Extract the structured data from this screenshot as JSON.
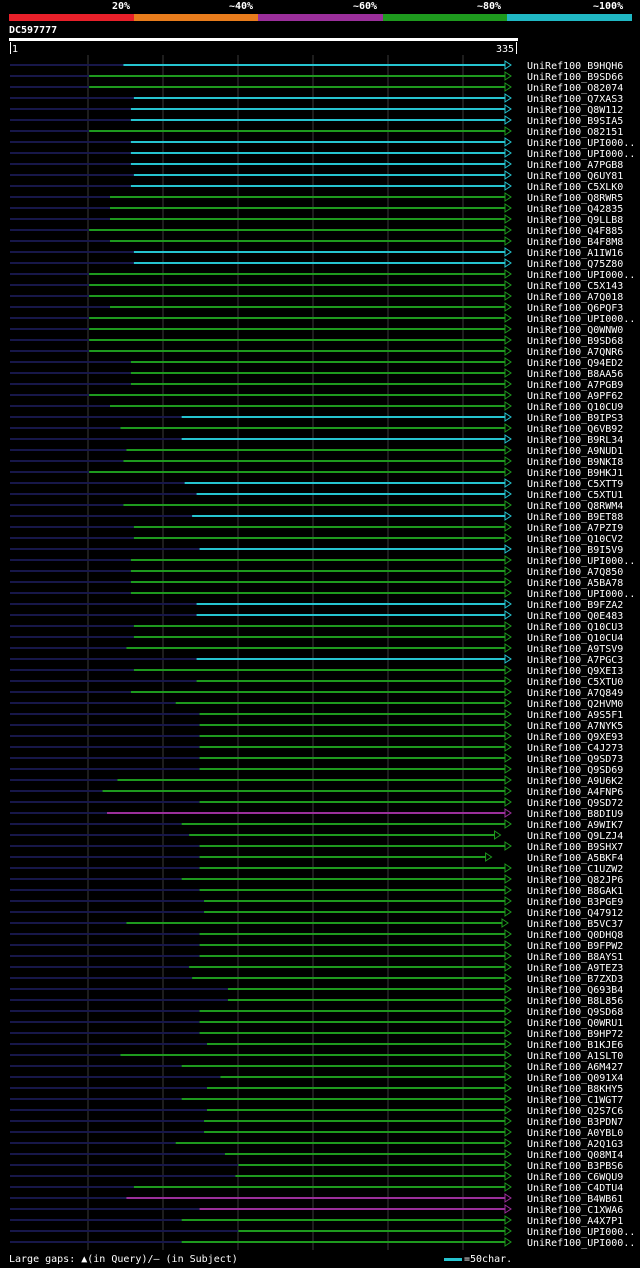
{
  "legend": {
    "labels": [
      "20%",
      "~40%",
      "~60%",
      "~80%",
      "~100%"
    ],
    "colors": [
      "#e8202a",
      "#e87c1c",
      "#9b2f9b",
      "#1e9a1e",
      "#20b8c4"
    ]
  },
  "query": {
    "id": "DC597777",
    "start": "1",
    "end": "335"
  },
  "footer": {
    "left_text": "Large gaps: ▲(in Query)/– (in Subject)",
    "right_text": "=50char."
  },
  "colors": {
    "cyan": "#26c4d0",
    "green": "#1e9a1e",
    "purple": "#9b2f9b",
    "dark": "#17174a",
    "grid": "#3a3a3a"
  },
  "hits": [
    {
      "label": "UniRef100_B9HQH6",
      "start": 76,
      "end": 335,
      "color": "cyan"
    },
    {
      "label": "UniRef100_B9SD66",
      "start": 53,
      "end": 335,
      "color": "green"
    },
    {
      "label": "UniRef100_O82074",
      "start": 53,
      "end": 335,
      "color": "green"
    },
    {
      "label": "UniRef100_Q7XAS3",
      "start": 83,
      "end": 335,
      "color": "cyan"
    },
    {
      "label": "UniRef100_Q8W112",
      "start": 81,
      "end": 335,
      "color": "cyan"
    },
    {
      "label": "UniRef100_B9SIA5",
      "start": 81,
      "end": 335,
      "color": "cyan"
    },
    {
      "label": "UniRef100_O82151",
      "start": 53,
      "end": 335,
      "color": "green"
    },
    {
      "label": "UniRef100_UPI000..",
      "start": 81,
      "end": 335,
      "color": "cyan"
    },
    {
      "label": "UniRef100_UPI000..",
      "start": 81,
      "end": 335,
      "color": "cyan"
    },
    {
      "label": "UniRef100_A7PGB8",
      "start": 81,
      "end": 335,
      "color": "cyan"
    },
    {
      "label": "UniRef100_Q6UY81",
      "start": 83,
      "end": 335,
      "color": "cyan"
    },
    {
      "label": "UniRef100_C5XLK0",
      "start": 81,
      "end": 335,
      "color": "cyan"
    },
    {
      "label": "UniRef100_Q8RWR5",
      "start": 67,
      "end": 335,
      "color": "green"
    },
    {
      "label": "UniRef100_Q42835",
      "start": 67,
      "end": 335,
      "color": "green"
    },
    {
      "label": "UniRef100_Q9LLB8",
      "start": 67,
      "end": 335,
      "color": "green"
    },
    {
      "label": "UniRef100_Q4F885",
      "start": 53,
      "end": 335,
      "color": "green"
    },
    {
      "label": "UniRef100_B4F8M8",
      "start": 67,
      "end": 335,
      "color": "green"
    },
    {
      "label": "UniRef100_A1IW16",
      "start": 83,
      "end": 335,
      "color": "cyan"
    },
    {
      "label": "UniRef100_Q75Z80",
      "start": 83,
      "end": 335,
      "color": "cyan"
    },
    {
      "label": "UniRef100_UPI000..",
      "start": 53,
      "end": 335,
      "color": "green"
    },
    {
      "label": "UniRef100_C5X143",
      "start": 53,
      "end": 335,
      "color": "green"
    },
    {
      "label": "UniRef100_A7Q018",
      "start": 53,
      "end": 335,
      "color": "green"
    },
    {
      "label": "UniRef100_Q6PQF3",
      "start": 67,
      "end": 335,
      "color": "green"
    },
    {
      "label": "UniRef100_UPI000..",
      "start": 53,
      "end": 335,
      "color": "green"
    },
    {
      "label": "UniRef100_Q0WNW0",
      "start": 53,
      "end": 335,
      "color": "green"
    },
    {
      "label": "UniRef100_B9SD68",
      "start": 53,
      "end": 335,
      "color": "green"
    },
    {
      "label": "UniRef100_A7QNR6",
      "start": 53,
      "end": 335,
      "color": "green"
    },
    {
      "label": "UniRef100_Q94ED2",
      "start": 81,
      "end": 335,
      "color": "green"
    },
    {
      "label": "UniRef100_B8AA56",
      "start": 81,
      "end": 335,
      "color": "green"
    },
    {
      "label": "UniRef100_A7PGB9",
      "start": 81,
      "end": 335,
      "color": "green"
    },
    {
      "label": "UniRef100_A9PF62",
      "start": 53,
      "end": 335,
      "color": "green"
    },
    {
      "label": "UniRef100_Q10CU9",
      "start": 67,
      "end": 335,
      "color": "green"
    },
    {
      "label": "UniRef100_B9IPS3",
      "start": 115,
      "end": 335,
      "color": "cyan"
    },
    {
      "label": "UniRef100_Q6VB92",
      "start": 74,
      "end": 335,
      "color": "green"
    },
    {
      "label": "UniRef100_B9RL34",
      "start": 115,
      "end": 335,
      "color": "cyan"
    },
    {
      "label": "UniRef100_A9NUD1",
      "start": 78,
      "end": 335,
      "color": "green"
    },
    {
      "label": "UniRef100_B9NKI8",
      "start": 76,
      "end": 335,
      "color": "green"
    },
    {
      "label": "UniRef100_B9HKJ1",
      "start": 53,
      "end": 335,
      "color": "green"
    },
    {
      "label": "UniRef100_C5XTT9",
      "start": 117,
      "end": 335,
      "color": "cyan"
    },
    {
      "label": "UniRef100_C5XTU1",
      "start": 125,
      "end": 335,
      "color": "cyan"
    },
    {
      "label": "UniRef100_Q8RWM4",
      "start": 76,
      "end": 335,
      "color": "green"
    },
    {
      "label": "UniRef100_B9ET88",
      "start": 122,
      "end": 335,
      "color": "cyan"
    },
    {
      "label": "UniRef100_A7PZI9",
      "start": 83,
      "end": 335,
      "color": "green"
    },
    {
      "label": "UniRef100_Q10CV2",
      "start": 83,
      "end": 335,
      "color": "green"
    },
    {
      "label": "UniRef100_B9I5V9",
      "start": 127,
      "end": 335,
      "color": "cyan"
    },
    {
      "label": "UniRef100_UPI000..",
      "start": 81,
      "end": 335,
      "color": "green"
    },
    {
      "label": "UniRef100_A7Q850",
      "start": 81,
      "end": 335,
      "color": "green"
    },
    {
      "label": "UniRef100_A5BA78",
      "start": 81,
      "end": 335,
      "color": "green"
    },
    {
      "label": "UniRef100_UPI000..",
      "start": 81,
      "end": 335,
      "color": "green"
    },
    {
      "label": "UniRef100_B9FZA2",
      "start": 125,
      "end": 335,
      "color": "cyan"
    },
    {
      "label": "UniRef100_Q0E483",
      "start": 125,
      "end": 335,
      "color": "cyan"
    },
    {
      "label": "UniRef100_Q10CU3",
      "start": 83,
      "end": 335,
      "color": "green"
    },
    {
      "label": "UniRef100_Q10CU4",
      "start": 83,
      "end": 335,
      "color": "green"
    },
    {
      "label": "UniRef100_A9TSV9",
      "start": 78,
      "end": 335,
      "color": "green"
    },
    {
      "label": "UniRef100_A7PGC3",
      "start": 125,
      "end": 335,
      "color": "cyan"
    },
    {
      "label": "UniRef100_Q9XEI3",
      "start": 83,
      "end": 335,
      "color": "green"
    },
    {
      "label": "UniRef100_C5XTU0",
      "start": 125,
      "end": 335,
      "color": "green"
    },
    {
      "label": "UniRef100_A7Q849",
      "start": 81,
      "end": 335,
      "color": "green"
    },
    {
      "label": "UniRef100_Q2HVM0",
      "start": 111,
      "end": 335,
      "color": "green"
    },
    {
      "label": "UniRef100_A9S5F1",
      "start": 127,
      "end": 335,
      "color": "green"
    },
    {
      "label": "UniRef100_A7NYK5",
      "start": 127,
      "end": 335,
      "color": "green"
    },
    {
      "label": "UniRef100_Q9XE93",
      "start": 127,
      "end": 335,
      "color": "green"
    },
    {
      "label": "UniRef100_C4J273",
      "start": 127,
      "end": 335,
      "color": "green"
    },
    {
      "label": "UniRef100_Q9SD73",
      "start": 127,
      "end": 335,
      "color": "green"
    },
    {
      "label": "UniRef100_Q9SD69",
      "start": 127,
      "end": 335,
      "color": "green"
    },
    {
      "label": "UniRef100_A9U6K2",
      "start": 72,
      "end": 335,
      "color": "green"
    },
    {
      "label": "UniRef100_A4FNP6",
      "start": 62,
      "end": 335,
      "color": "green"
    },
    {
      "label": "UniRef100_Q9SD72",
      "start": 127,
      "end": 335,
      "color": "green"
    },
    {
      "label": "UniRef100_B8DIU9",
      "start": 65,
      "end": 335,
      "color": "purple"
    },
    {
      "label": "UniRef100_A9WIK7",
      "start": 115,
      "end": 335,
      "color": "green"
    },
    {
      "label": "UniRef100_Q9LZJ4",
      "start": 120,
      "end": 328,
      "color": "green"
    },
    {
      "label": "UniRef100_B9SHX7",
      "start": 127,
      "end": 335,
      "color": "green"
    },
    {
      "label": "UniRef100_A5BKF4",
      "start": 127,
      "end": 322,
      "color": "green"
    },
    {
      "label": "UniRef100_C1UZW2",
      "start": 127,
      "end": 335,
      "color": "green"
    },
    {
      "label": "UniRef100_Q82JP6",
      "start": 115,
      "end": 335,
      "color": "green"
    },
    {
      "label": "UniRef100_B8GAK1",
      "start": 127,
      "end": 335,
      "color": "green"
    },
    {
      "label": "UniRef100_B3PGE9",
      "start": 130,
      "end": 335,
      "color": "green"
    },
    {
      "label": "UniRef100_Q47912",
      "start": 130,
      "end": 335,
      "color": "green"
    },
    {
      "label": "UniRef100_B5VC37",
      "start": 78,
      "end": 333,
      "color": "green"
    },
    {
      "label": "UniRef100_Q0DHQ8",
      "start": 127,
      "end": 335,
      "color": "green"
    },
    {
      "label": "UniRef100_B9FPW2",
      "start": 127,
      "end": 335,
      "color": "green"
    },
    {
      "label": "UniRef100_B8AYS1",
      "start": 127,
      "end": 335,
      "color": "green"
    },
    {
      "label": "UniRef100_A9TEZ3",
      "start": 120,
      "end": 335,
      "color": "green"
    },
    {
      "label": "UniRef100_B7ZXD3",
      "start": 122,
      "end": 335,
      "color": "green"
    },
    {
      "label": "UniRef100_Q693B4",
      "start": 146,
      "end": 335,
      "color": "green"
    },
    {
      "label": "UniRef100_B8L856",
      "start": 146,
      "end": 335,
      "color": "green"
    },
    {
      "label": "UniRef100_Q9SD68",
      "start": 127,
      "end": 335,
      "color": "green"
    },
    {
      "label": "UniRef100_Q0WRU1",
      "start": 127,
      "end": 335,
      "color": "green"
    },
    {
      "label": "UniRef100_B9HP72",
      "start": 127,
      "end": 335,
      "color": "green"
    },
    {
      "label": "UniRef100_B1KJE6",
      "start": 132,
      "end": 335,
      "color": "green"
    },
    {
      "label": "UniRef100_A1SLT0",
      "start": 74,
      "end": 335,
      "color": "green"
    },
    {
      "label": "UniRef100_A6M427",
      "start": 115,
      "end": 335,
      "color": "green"
    },
    {
      "label": "UniRef100_Q091X4",
      "start": 141,
      "end": 335,
      "color": "green"
    },
    {
      "label": "UniRef100_B8KHY5",
      "start": 132,
      "end": 335,
      "color": "green"
    },
    {
      "label": "UniRef100_C1WGT7",
      "start": 115,
      "end": 335,
      "color": "green"
    },
    {
      "label": "UniRef100_Q2S7C6",
      "start": 132,
      "end": 335,
      "color": "green"
    },
    {
      "label": "UniRef100_B3PDN7",
      "start": 130,
      "end": 335,
      "color": "green"
    },
    {
      "label": "UniRef100_A0YBL0",
      "start": 130,
      "end": 335,
      "color": "green"
    },
    {
      "label": "UniRef100_A2Q1G3",
      "start": 111,
      "end": 335,
      "color": "green"
    },
    {
      "label": "UniRef100_Q08MI4",
      "start": 144,
      "end": 335,
      "color": "green"
    },
    {
      "label": "UniRef100_B3PBS6",
      "start": 153,
      "end": 335,
      "color": "green"
    },
    {
      "label": "UniRef100_C6WQU9",
      "start": 151,
      "end": 335,
      "color": "green"
    },
    {
      "label": "UniRef100_C4DTU4",
      "start": 83,
      "end": 335,
      "color": "green"
    },
    {
      "label": "UniRef100_B4WB61",
      "start": 78,
      "end": 335,
      "color": "purple"
    },
    {
      "label": "UniRef100_C1XWA6",
      "start": 127,
      "end": 335,
      "color": "purple"
    },
    {
      "label": "UniRef100_A4X7P1",
      "start": 115,
      "end": 335,
      "color": "green"
    },
    {
      "label": "UniRef100_UPI000..",
      "start": 153,
      "end": 335,
      "color": "green"
    },
    {
      "label": "UniRef100_UPI000..",
      "start": 115,
      "end": 335,
      "color": "green"
    }
  ]
}
